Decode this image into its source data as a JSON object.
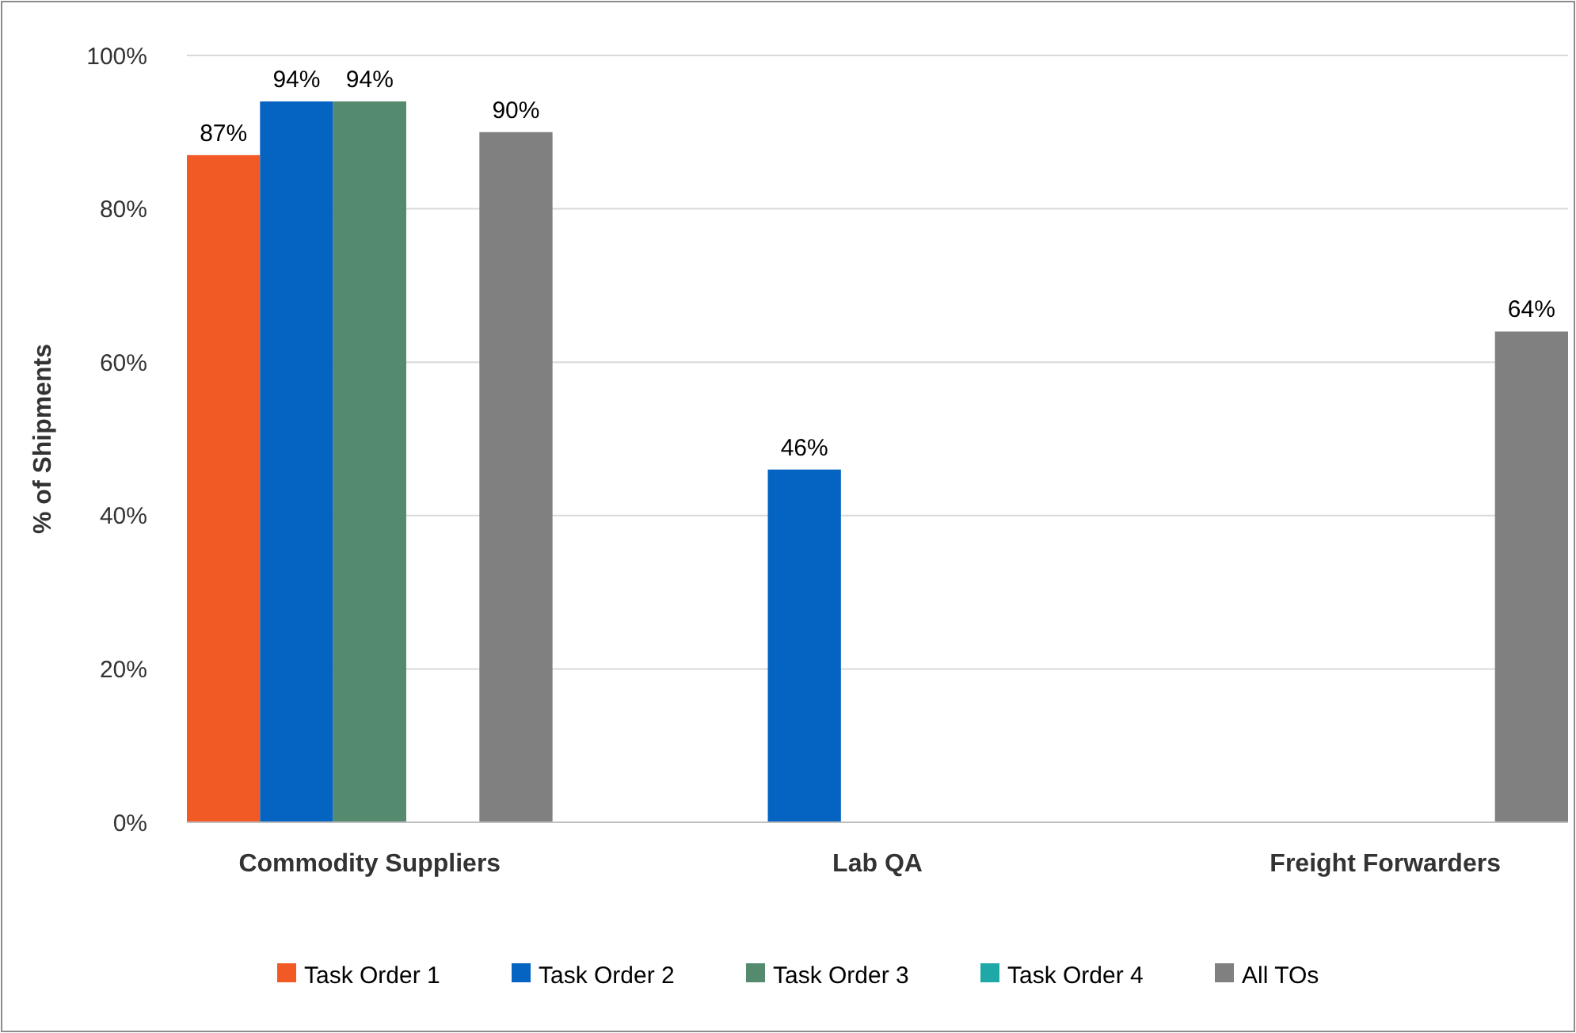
{
  "chart_data": {
    "type": "bar",
    "ylabel": "% of Shipments",
    "categories": [
      "Commodity Suppliers",
      "Lab QA",
      "Freight Forwarders"
    ],
    "series": [
      {
        "name": "Task Order 1",
        "color": "#f15a24",
        "values": [
          87,
          null,
          null
        ],
        "value_labels": [
          "87%",
          null,
          null
        ]
      },
      {
        "name": "Task Order 2",
        "color": "#0563c1",
        "values": [
          94,
          46,
          null
        ],
        "value_labels": [
          "94%",
          "46%",
          null
        ]
      },
      {
        "name": "Task Order 3",
        "color": "#548b6e",
        "values": [
          94,
          null,
          null
        ],
        "value_labels": [
          "94%",
          null,
          null
        ]
      },
      {
        "name": "Task Order 4",
        "color": "#1fa8a8",
        "values": [
          null,
          null,
          null
        ]
      },
      {
        "name": "All TOs",
        "color": "#808080",
        "values": [
          90,
          null,
          64
        ],
        "value_labels": [
          "90%",
          null,
          "64%"
        ]
      }
    ],
    "ylim": [
      0,
      100
    ],
    "yticks": [
      {
        "value": 0,
        "label": "0%"
      },
      {
        "value": 20,
        "label": "20%"
      },
      {
        "value": 40,
        "label": "40%"
      },
      {
        "value": 60,
        "label": "60%"
      },
      {
        "value": 80,
        "label": "80%"
      },
      {
        "value": 100,
        "label": "100%"
      }
    ],
    "grid": "y",
    "legend": "bottom"
  }
}
